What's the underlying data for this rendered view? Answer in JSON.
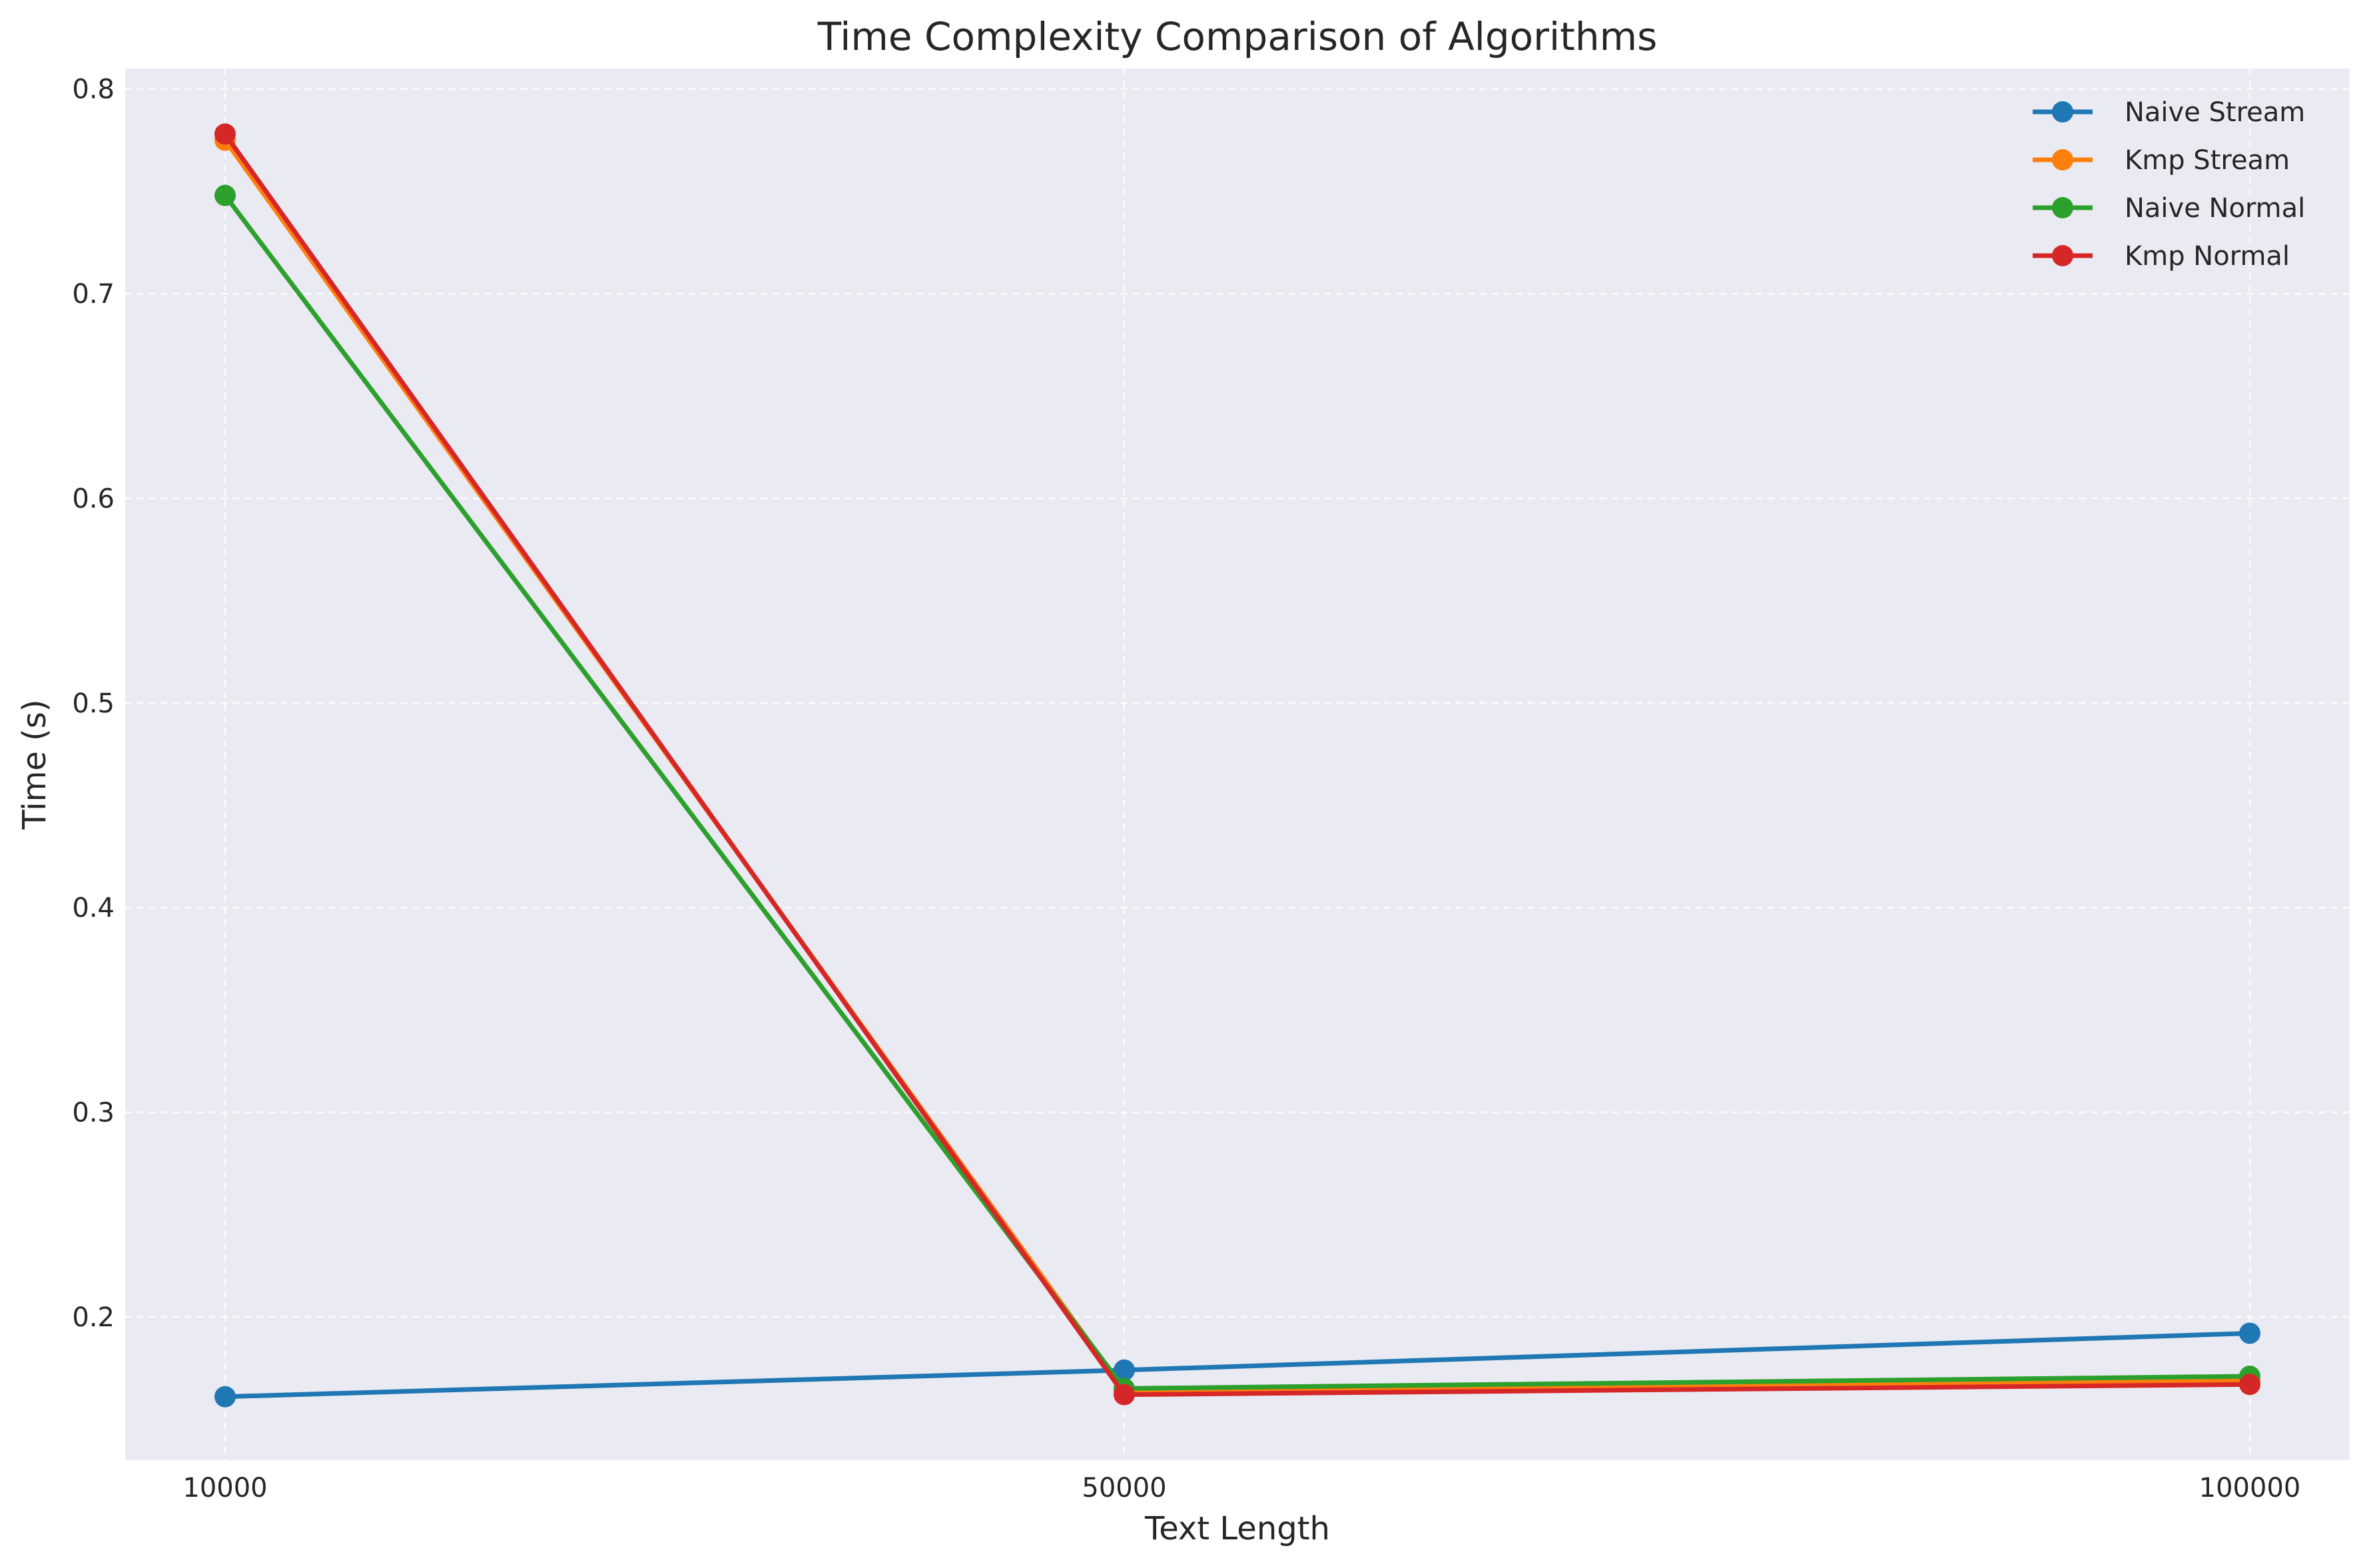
{
  "chart_data": {
    "type": "line",
    "title": "Time Complexity Comparison of Algorithms",
    "xlabel": "Text Length",
    "ylabel": "Time (s)",
    "categories": [
      "10000",
      "50000",
      "100000"
    ],
    "ylim": [
      0.13,
      0.81
    ],
    "yticks": [
      0.2,
      0.3,
      0.4,
      0.5,
      0.6,
      0.7,
      0.8
    ],
    "ytick_labels": [
      "0.2",
      "0.3",
      "0.4",
      "0.5",
      "0.6",
      "0.7",
      "0.8"
    ],
    "grid": true,
    "legend_position": "top-right",
    "series": [
      {
        "name": "Naive Stream",
        "color": "#1f77b4",
        "values": [
          0.161,
          0.174,
          0.192
        ]
      },
      {
        "name": "Kmp Stream",
        "color": "#ff7f0e",
        "values": [
          0.775,
          0.164,
          0.169
        ]
      },
      {
        "name": "Naive Normal",
        "color": "#2ca02c",
        "values": [
          0.748,
          0.165,
          0.171
        ]
      },
      {
        "name": "Kmp Normal",
        "color": "#d62728",
        "values": [
          0.778,
          0.162,
          0.167
        ]
      }
    ]
  }
}
